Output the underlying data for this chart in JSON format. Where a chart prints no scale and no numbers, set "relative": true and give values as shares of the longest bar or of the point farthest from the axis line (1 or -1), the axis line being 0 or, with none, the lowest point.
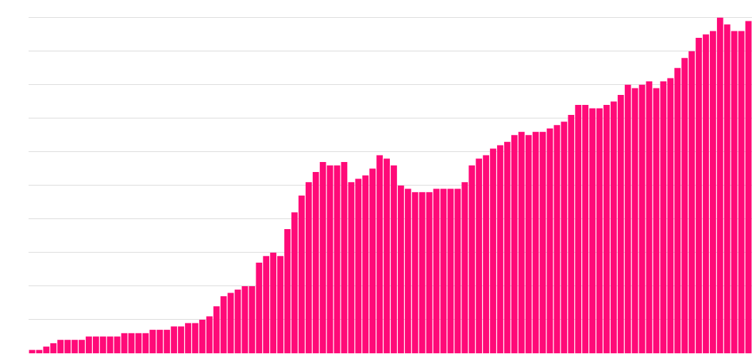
{
  "chart_data": {
    "type": "bar",
    "relative": true,
    "grid": "y",
    "color": "#ff0a78",
    "categories": [
      null,
      null,
      null,
      null,
      null,
      null,
      null,
      null,
      null,
      null,
      null,
      null,
      null,
      null,
      null,
      null,
      null,
      null,
      null,
      null,
      null,
      null,
      null,
      null,
      null,
      null,
      null,
      null,
      null,
      null,
      null,
      null,
      null,
      null,
      null,
      null,
      null,
      null,
      null,
      null,
      null,
      null,
      null,
      null,
      null,
      null,
      null,
      null,
      null,
      null,
      null,
      null,
      null,
      null,
      null,
      null,
      null,
      null,
      null,
      null,
      null,
      null,
      null,
      null,
      null,
      null,
      null,
      null,
      null,
      null,
      null,
      null,
      null,
      null,
      null,
      null,
      null,
      null,
      null,
      null,
      null,
      null,
      null,
      null,
      null,
      null,
      null,
      null,
      null,
      null,
      null,
      null,
      null,
      null,
      null,
      null,
      null,
      null,
      null,
      null,
      null,
      null
    ],
    "values": [
      0.01,
      0.01,
      0.02,
      0.03,
      0.04,
      0.04,
      0.04,
      0.04,
      0.05,
      0.05,
      0.05,
      0.05,
      0.05,
      0.06,
      0.06,
      0.06,
      0.06,
      0.07,
      0.07,
      0.07,
      0.08,
      0.08,
      0.09,
      0.09,
      0.1,
      0.11,
      0.14,
      0.17,
      0.18,
      0.19,
      0.2,
      0.2,
      0.27,
      0.29,
      0.3,
      0.29,
      0.37,
      0.42,
      0.47,
      0.51,
      0.54,
      0.57,
      0.56,
      0.56,
      0.57,
      0.51,
      0.52,
      0.53,
      0.55,
      0.59,
      0.58,
      0.56,
      0.5,
      0.49,
      0.48,
      0.48,
      0.48,
      0.49,
      0.49,
      0.49,
      0.49,
      0.51,
      0.56,
      0.58,
      0.59,
      0.61,
      0.62,
      0.63,
      0.65,
      0.66,
      0.65,
      0.66,
      0.66,
      0.67,
      0.68,
      0.69,
      0.71,
      0.74,
      0.74,
      0.73,
      0.73,
      0.74,
      0.75,
      0.77,
      0.8,
      0.79,
      0.8,
      0.81,
      0.79,
      0.81,
      0.82,
      0.85,
      0.88,
      0.9,
      0.94,
      0.95,
      0.96,
      1.0,
      0.98,
      0.96,
      0.96,
      0.99
    ]
  }
}
